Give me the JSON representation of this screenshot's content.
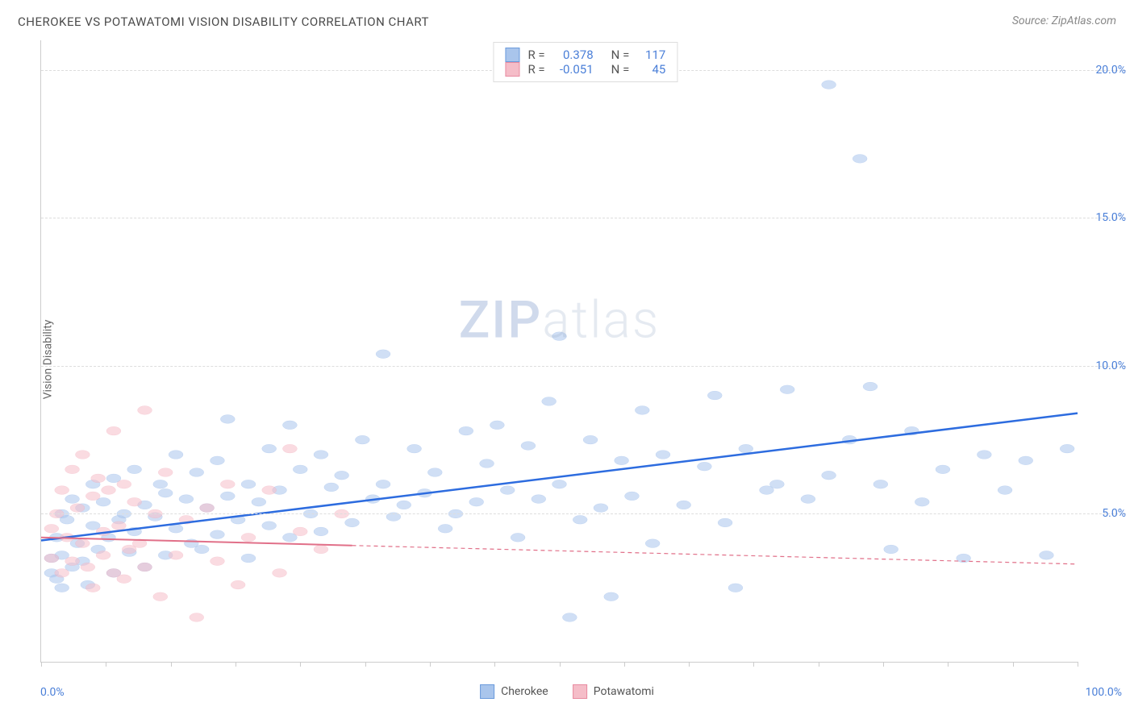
{
  "title": "CHEROKEE VS POTAWATOMI VISION DISABILITY CORRELATION CHART",
  "source": "Source: ZipAtlas.com",
  "y_axis_label": "Vision Disability",
  "watermark_zip": "ZIP",
  "watermark_atlas": "atlas",
  "chart": {
    "type": "scatter",
    "xlim": [
      0,
      100
    ],
    "ylim": [
      0,
      21
    ],
    "x_tick_labels": {
      "min": "0.0%",
      "max": "100.0%"
    },
    "y_ticks": [
      {
        "v": 5,
        "label": "5.0%"
      },
      {
        "v": 10,
        "label": "10.0%"
      },
      {
        "v": 15,
        "label": "15.0%"
      },
      {
        "v": 20,
        "label": "20.0%"
      }
    ],
    "x_tick_positions": [
      0,
      6.25,
      12.5,
      18.75,
      25,
      31.25,
      37.5,
      43.75,
      50,
      56.25,
      62.5,
      68.75,
      75,
      81.25,
      87.5,
      93.75,
      100
    ],
    "background_color": "#ffffff",
    "grid_color": "#dddddd",
    "axis_color": "#cccccc",
    "tick_label_color": "#4a7fd8",
    "marker_radius": 8,
    "marker_opacity": 0.55,
    "series": [
      {
        "name": "Cherokee",
        "fill": "#a9c5ec",
        "stroke": "#6b9bdc",
        "r_label": "R =",
        "r_value": "0.378",
        "n_label": "N =",
        "n_value": "117",
        "regression": {
          "x1": 0,
          "y1": 4.1,
          "x2": 100,
          "y2": 8.4,
          "color": "#2d6cdf",
          "width": 2.5,
          "dash": "none"
        },
        "points": [
          [
            1,
            3.0
          ],
          [
            1,
            3.5
          ],
          [
            1.5,
            2.8
          ],
          [
            1.5,
            4.2
          ],
          [
            2,
            3.6
          ],
          [
            2,
            2.5
          ],
          [
            2,
            5.0
          ],
          [
            2.5,
            4.8
          ],
          [
            3,
            3.2
          ],
          [
            3,
            5.5
          ],
          [
            3.5,
            4.0
          ],
          [
            4,
            3.4
          ],
          [
            4,
            5.2
          ],
          [
            4.5,
            2.6
          ],
          [
            5,
            4.6
          ],
          [
            5,
            6.0
          ],
          [
            5.5,
            3.8
          ],
          [
            6,
            5.4
          ],
          [
            6.5,
            4.2
          ],
          [
            7,
            3.0
          ],
          [
            7,
            6.2
          ],
          [
            7.5,
            4.8
          ],
          [
            8,
            5.0
          ],
          [
            8.5,
            3.7
          ],
          [
            9,
            4.4
          ],
          [
            9,
            6.5
          ],
          [
            10,
            5.3
          ],
          [
            10,
            3.2
          ],
          [
            11,
            4.9
          ],
          [
            11.5,
            6.0
          ],
          [
            12,
            3.6
          ],
          [
            12,
            5.7
          ],
          [
            13,
            4.5
          ],
          [
            13,
            7.0
          ],
          [
            14,
            5.5
          ],
          [
            14.5,
            4.0
          ],
          [
            15,
            6.4
          ],
          [
            15.5,
            3.8
          ],
          [
            16,
            5.2
          ],
          [
            17,
            6.8
          ],
          [
            17,
            4.3
          ],
          [
            18,
            5.6
          ],
          [
            18,
            8.2
          ],
          [
            19,
            4.8
          ],
          [
            20,
            6.0
          ],
          [
            20,
            3.5
          ],
          [
            21,
            5.4
          ],
          [
            22,
            7.2
          ],
          [
            22,
            4.6
          ],
          [
            23,
            5.8
          ],
          [
            24,
            8.0
          ],
          [
            24,
            4.2
          ],
          [
            25,
            6.5
          ],
          [
            26,
            5.0
          ],
          [
            27,
            7.0
          ],
          [
            27,
            4.4
          ],
          [
            28,
            5.9
          ],
          [
            29,
            6.3
          ],
          [
            30,
            4.7
          ],
          [
            31,
            7.5
          ],
          [
            32,
            5.5
          ],
          [
            33,
            6.0
          ],
          [
            33,
            10.4
          ],
          [
            34,
            4.9
          ],
          [
            35,
            5.3
          ],
          [
            36,
            7.2
          ],
          [
            37,
            5.7
          ],
          [
            38,
            6.4
          ],
          [
            39,
            4.5
          ],
          [
            40,
            5.0
          ],
          [
            41,
            7.8
          ],
          [
            42,
            5.4
          ],
          [
            43,
            6.7
          ],
          [
            44,
            8.0
          ],
          [
            45,
            5.8
          ],
          [
            46,
            4.2
          ],
          [
            47,
            7.3
          ],
          [
            48,
            5.5
          ],
          [
            49,
            8.8
          ],
          [
            50,
            6.0
          ],
          [
            50,
            11.0
          ],
          [
            51,
            1.5
          ],
          [
            52,
            4.8
          ],
          [
            53,
            7.5
          ],
          [
            54,
            5.2
          ],
          [
            55,
            2.2
          ],
          [
            56,
            6.8
          ],
          [
            57,
            5.6
          ],
          [
            58,
            8.5
          ],
          [
            59,
            4.0
          ],
          [
            60,
            7.0
          ],
          [
            62,
            5.3
          ],
          [
            64,
            6.6
          ],
          [
            65,
            9.0
          ],
          [
            66,
            4.7
          ],
          [
            67,
            2.5
          ],
          [
            68,
            7.2
          ],
          [
            70,
            5.8
          ],
          [
            71,
            6.0
          ],
          [
            72,
            9.2
          ],
          [
            74,
            5.5
          ],
          [
            76,
            6.3
          ],
          [
            76,
            19.5
          ],
          [
            78,
            7.5
          ],
          [
            79,
            17.0
          ],
          [
            80,
            9.3
          ],
          [
            81,
            6.0
          ],
          [
            82,
            3.8
          ],
          [
            84,
            7.8
          ],
          [
            85,
            5.4
          ],
          [
            87,
            6.5
          ],
          [
            89,
            3.5
          ],
          [
            91,
            7.0
          ],
          [
            93,
            5.8
          ],
          [
            95,
            6.8
          ],
          [
            97,
            3.6
          ],
          [
            99,
            7.2
          ]
        ]
      },
      {
        "name": "Potawatomi",
        "fill": "#f5bdc8",
        "stroke": "#e88ba0",
        "r_label": "R =",
        "r_value": "-0.051",
        "n_label": "N =",
        "n_value": "45",
        "regression": {
          "x1": 0,
          "y1": 4.2,
          "x2": 100,
          "y2": 3.3,
          "color": "#e17089",
          "width": 2,
          "dash_solid_until": 30
        },
        "points": [
          [
            1,
            3.5
          ],
          [
            1,
            4.5
          ],
          [
            1.5,
            5.0
          ],
          [
            2,
            3.0
          ],
          [
            2,
            5.8
          ],
          [
            2.5,
            4.2
          ],
          [
            3,
            6.5
          ],
          [
            3,
            3.4
          ],
          [
            3.5,
            5.2
          ],
          [
            4,
            4.0
          ],
          [
            4,
            7.0
          ],
          [
            4.5,
            3.2
          ],
          [
            5,
            5.6
          ],
          [
            5,
            2.5
          ],
          [
            5.5,
            6.2
          ],
          [
            6,
            4.4
          ],
          [
            6,
            3.6
          ],
          [
            6.5,
            5.8
          ],
          [
            7,
            3.0
          ],
          [
            7,
            7.8
          ],
          [
            7.5,
            4.6
          ],
          [
            8,
            2.8
          ],
          [
            8,
            6.0
          ],
          [
            8.5,
            3.8
          ],
          [
            9,
            5.4
          ],
          [
            9.5,
            4.0
          ],
          [
            10,
            8.5
          ],
          [
            10,
            3.2
          ],
          [
            11,
            5.0
          ],
          [
            11.5,
            2.2
          ],
          [
            12,
            6.4
          ],
          [
            13,
            3.6
          ],
          [
            14,
            4.8
          ],
          [
            15,
            1.5
          ],
          [
            16,
            5.2
          ],
          [
            17,
            3.4
          ],
          [
            18,
            6.0
          ],
          [
            19,
            2.6
          ],
          [
            20,
            4.2
          ],
          [
            22,
            5.8
          ],
          [
            23,
            3.0
          ],
          [
            24,
            7.2
          ],
          [
            25,
            4.4
          ],
          [
            27,
            3.8
          ],
          [
            29,
            5.0
          ]
        ]
      }
    ]
  },
  "bottom_legend": [
    {
      "label": "Cherokee",
      "fill": "#a9c5ec",
      "stroke": "#6b9bdc"
    },
    {
      "label": "Potawatomi",
      "fill": "#f5bdc8",
      "stroke": "#e88ba0"
    }
  ]
}
